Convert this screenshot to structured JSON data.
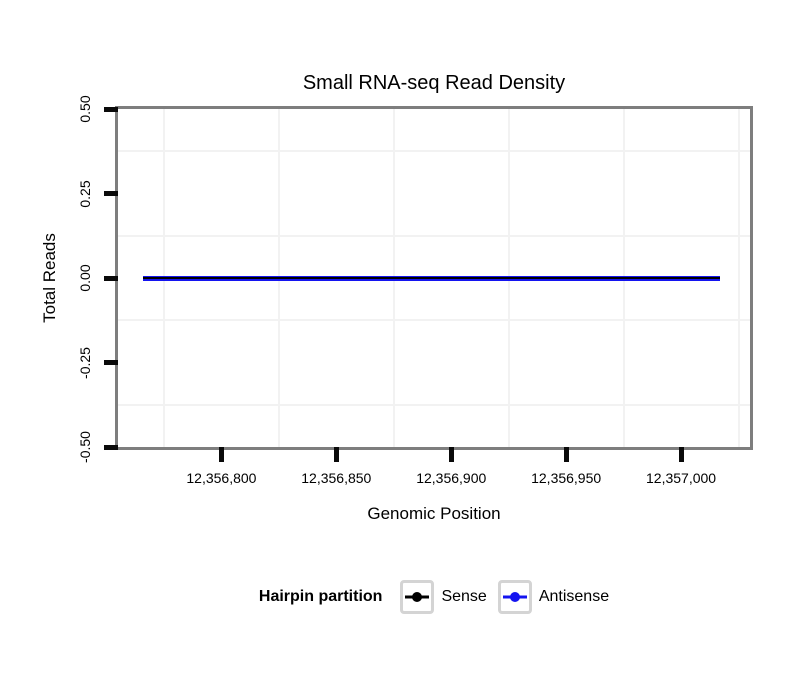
{
  "title": "Small RNA-seq Read Density",
  "x_axis": {
    "label": "Genomic Position"
  },
  "y_axis": {
    "label": "Total Reads"
  },
  "legend": {
    "title": "Hairpin partition",
    "items": [
      {
        "label": "Sense",
        "color": "#000000"
      },
      {
        "label": "Antisense",
        "color": "#1414f0"
      }
    ]
  },
  "colors": {
    "panel_border": "#7e7e7e",
    "gridline": "#f2f2f2",
    "tick": "#0a0a0a",
    "background": "#ffffff",
    "sense": "#000000",
    "antisense": "#1414f0"
  },
  "chart_data": {
    "type": "line",
    "title": "Small RNA-seq Read Density",
    "xlabel": "Genomic Position",
    "ylabel": "Total Reads",
    "xlim": [
      12356755,
      12357030
    ],
    "ylim": [
      -0.5,
      0.5
    ],
    "grid": "minor-gridlines-only, light gray on white panel",
    "legend_position": "bottom-center",
    "legend_title": "Hairpin partition",
    "x_ticks": [
      {
        "value": 12356800,
        "label": "12,356,800"
      },
      {
        "value": 12356850,
        "label": "12,356,850"
      },
      {
        "value": 12356900,
        "label": "12,356,900"
      },
      {
        "value": 12356950,
        "label": "12,356,950"
      },
      {
        "value": 12357000,
        "label": "12,357,000"
      }
    ],
    "y_ticks": [
      {
        "value": 0.5,
        "label": "0.50"
      },
      {
        "value": 0.25,
        "label": "0.25"
      },
      {
        "value": 0.0,
        "label": "0.00"
      },
      {
        "value": -0.25,
        "label": "-0.25"
      },
      {
        "value": -0.5,
        "label": "-0.50"
      }
    ],
    "x_minor_gridlines": [
      12356775,
      12356825,
      12356875,
      12356925,
      12356975,
      12357025
    ],
    "y_minor_gridlines": [
      0.375,
      0.125,
      -0.125,
      -0.375
    ],
    "series": [
      {
        "name": "Sense",
        "color": "#000000",
        "linewidth": 2,
        "x_range": [
          12356766,
          12357017
        ],
        "y_constant": 0
      },
      {
        "name": "Antisense",
        "color": "#1414f0",
        "linewidth": 5,
        "x_range": [
          12356766,
          12357017
        ],
        "y_constant": 0
      }
    ]
  }
}
